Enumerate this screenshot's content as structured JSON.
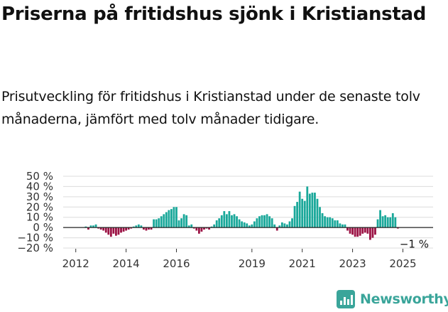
{
  "header": {
    "title": "Priserna på fritidshus sjönk i Kristianstad",
    "subtitle": "Prisutveckling för fritidshus i Kristianstad under de senaste tolv månaderna, jämfört med tolv månader tidigare."
  },
  "logo": {
    "text": "Newsworthy"
  },
  "chart_data": {
    "type": "bar",
    "title": "Priserna på fritidshus sjönk i Kristianstad",
    "ylim": [
      -20,
      50
    ],
    "ytick_values": [
      50,
      40,
      30,
      20,
      10,
      0,
      -10,
      -20
    ],
    "ytick_labels": [
      "50 %",
      "40 %",
      "30 %",
      "20 %",
      "10 %",
      "0 %",
      "−10 %",
      "−20 %"
    ],
    "xlim": [
      2011.5,
      2026.2
    ],
    "xtick_values": [
      2012,
      2014,
      2016,
      2019,
      2021,
      2023,
      2025
    ],
    "xtick_labels": [
      "2012",
      "2014",
      "2016",
      "2019",
      "2021",
      "2023",
      "2025"
    ],
    "grid": true,
    "positive_color": "#1aa89a",
    "negative_color": "#9b1244",
    "last_label": "−1 %",
    "x": [
      2012.4,
      2012.5,
      2012.6,
      2012.7,
      2012.8,
      2012.9,
      2013.0,
      2013.1,
      2013.2,
      2013.3,
      2013.4,
      2013.5,
      2013.6,
      2013.7,
      2013.8,
      2013.9,
      2014.0,
      2014.1,
      2014.2,
      2014.3,
      2014.4,
      2014.5,
      2014.6,
      2014.7,
      2014.8,
      2014.9,
      2015.0,
      2015.1,
      2015.2,
      2015.3,
      2015.4,
      2015.5,
      2015.6,
      2015.7,
      2015.8,
      2015.9,
      2016.0,
      2016.1,
      2016.2,
      2016.3,
      2016.4,
      2016.5,
      2016.6,
      2016.7,
      2016.8,
      2016.9,
      2017.0,
      2017.1,
      2017.2,
      2017.3,
      2017.4,
      2017.5,
      2017.6,
      2017.7,
      2017.8,
      2017.9,
      2018.0,
      2018.1,
      2018.2,
      2018.3,
      2018.4,
      2018.5,
      2018.6,
      2018.7,
      2018.8,
      2018.9,
      2019.0,
      2019.1,
      2019.2,
      2019.3,
      2019.4,
      2019.5,
      2019.6,
      2019.7,
      2019.8,
      2019.9,
      2020.0,
      2020.1,
      2020.2,
      2020.3,
      2020.4,
      2020.5,
      2020.6,
      2020.7,
      2020.8,
      2020.9,
      2021.0,
      2021.1,
      2021.2,
      2021.3,
      2021.4,
      2021.5,
      2021.6,
      2021.7,
      2021.8,
      2021.9,
      2022.0,
      2022.1,
      2022.2,
      2022.3,
      2022.4,
      2022.5,
      2022.6,
      2022.7,
      2022.8,
      2022.9,
      2023.0,
      2023.1,
      2023.2,
      2023.3,
      2023.4,
      2023.5,
      2023.6,
      2023.7,
      2023.8,
      2023.9,
      2024.0,
      2024.1,
      2024.2,
      2024.3,
      2024.4,
      2024.5,
      2024.6,
      2024.7,
      2024.8,
      2024.9,
      2025.0,
      2025.1,
      2025.2,
      2025.3,
      2025.4
    ],
    "values": [
      1,
      -2,
      2,
      2,
      3,
      -1,
      -2,
      -3,
      -5,
      -7,
      -9,
      -6,
      -8,
      -7,
      -5,
      -4,
      -3,
      -2,
      -1,
      1,
      2,
      3,
      2,
      -2,
      -3,
      -2,
      -2,
      8,
      8,
      9,
      11,
      13,
      15,
      17,
      18,
      20,
      20,
      7,
      9,
      13,
      12,
      2,
      3,
      -1,
      -3,
      -6,
      -4,
      -2,
      -1,
      -2,
      1,
      3,
      7,
      9,
      12,
      16,
      13,
      16,
      12,
      13,
      11,
      8,
      6,
      5,
      4,
      2,
      3,
      6,
      9,
      11,
      12,
      12,
      13,
      11,
      9,
      3,
      -3,
      2,
      5,
      4,
      3,
      6,
      9,
      21,
      25,
      35,
      28,
      26,
      40,
      33,
      34,
      34,
      28,
      20,
      14,
      11,
      10,
      10,
      9,
      7,
      7,
      4,
      3,
      3,
      -3,
      -6,
      -7,
      -9,
      -9,
      -8,
      -6,
      -5,
      -6,
      -12,
      -10,
      -7,
      8,
      17,
      11,
      12,
      10,
      10,
      14,
      10,
      -1,
      null,
      null,
      null,
      null,
      null,
      null
    ]
  }
}
